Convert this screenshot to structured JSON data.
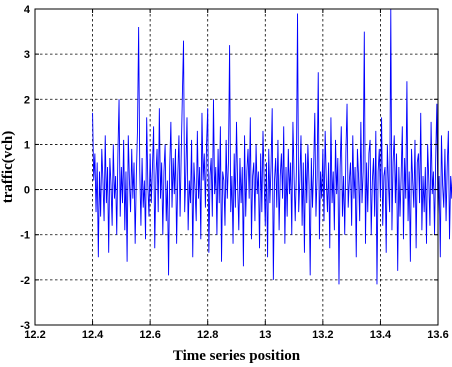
{
  "chart_data": {
    "type": "line",
    "title": "",
    "xlabel": "Time series position",
    "ylabel": "traffic(vch)",
    "xlim": [
      12.2,
      13.6
    ],
    "ylim": [
      -3,
      4
    ],
    "xticks": [
      12.2,
      12.4,
      12.6,
      12.8,
      13,
      13.2,
      13.4,
      13.6
    ],
    "yticks": [
      -3,
      -2,
      -1,
      0,
      1,
      2,
      3,
      4
    ],
    "xtick_labels": [
      "12.2",
      "12.4",
      "12.6",
      "12.8",
      "13",
      "13.2",
      "13.4",
      "13.6"
    ],
    "ytick_labels": [
      "-3",
      "-2",
      "-1",
      "0",
      "1",
      "2",
      "3",
      "4"
    ],
    "grid": true,
    "legend": "none",
    "series": [
      {
        "color": "#0000ff",
        "x_start": 12.4,
        "x_step": 0.004,
        "values": [
          1.7,
          0.2,
          0.8,
          -0.5,
          0.6,
          -1.5,
          0.4,
          -0.6,
          0.9,
          0.2,
          -0.7,
          1.2,
          -0.3,
          0.5,
          -1.4,
          0.7,
          0.1,
          -0.8,
          1.0,
          -0.2,
          0.3,
          -1.0,
          0.8,
          2.0,
          -0.6,
          0.5,
          -0.3,
          1.1,
          -0.9,
          0.4,
          -1.6,
          1.2,
          0.2,
          -0.5,
          0.9,
          -0.2,
          0.6,
          -1.2,
          0.3,
          1.3,
          3.6,
          0.4,
          -0.8,
          0.7,
          -0.4,
          0.2,
          -1.1,
          1.6,
          0.1,
          -0.6,
          0.8,
          -0.3,
          0.5,
          1.4,
          -1.3,
          0.3,
          0.9,
          -0.5,
          1.8,
          -0.2,
          0.6,
          -1.0,
          0.4,
          1.0,
          -0.7,
          0.2,
          -1.9,
          0.5,
          1.5,
          -0.4,
          0.7,
          -0.1,
          0.9,
          -1.2,
          0.3,
          1.2,
          -0.6,
          0.8,
          2.1,
          3.3,
          -0.5,
          0.4,
          1.6,
          -0.9,
          0.2,
          -0.3,
          1.1,
          -1.5,
          0.6,
          0.0,
          -0.7,
          1.3,
          -0.2,
          0.5,
          -1.1,
          1.7,
          0.2,
          0.8,
          -0.4,
          1.0,
          1.8,
          -1.4,
          0.3,
          0.7,
          -0.6,
          2.0,
          -0.1,
          0.5,
          -1.0,
          0.9,
          -0.3,
          1.4,
          -1.6,
          0.4,
          0.2,
          -0.8,
          1.1,
          -0.2,
          0.6,
          3.2,
          -0.5,
          0.3,
          -1.2,
          0.8,
          -0.4,
          1.5,
          0.1,
          -0.9,
          0.7,
          -0.3,
          0.5,
          -1.7,
          1.2,
          -0.6,
          0.4,
          0.9,
          -0.2,
          1.6,
          -1.1,
          0.3,
          0.6,
          -0.7,
          1.0,
          -0.1,
          0.4,
          -1.3,
          0.8,
          -0.5,
          1.3,
          0.2,
          -0.8,
          0.6,
          -1.5,
          0.9,
          -0.3,
          0.5,
          1.8,
          -2.0,
          0.2,
          0.7,
          -0.4,
          1.1,
          -0.9,
          0.3,
          0.8,
          -0.2,
          1.4,
          -1.2,
          0.5,
          -0.6,
          0.9,
          -0.1,
          0.6,
          -1.0,
          1.5,
          0.3,
          -0.7,
          0.4,
          3.9,
          -0.5,
          0.2,
          1.2,
          -0.8,
          0.6,
          -1.4,
          0.8,
          -0.3,
          1.0,
          0.1,
          -1.9,
          0.7,
          -0.4,
          0.5,
          1.7,
          -0.6,
          0.3,
          2.6,
          -1.1,
          0.4,
          -0.2,
          0.9,
          -0.7,
          1.3,
          0.2,
          -0.5,
          0.6,
          -1.3,
          1.6,
          -0.3,
          0.4,
          -0.9,
          1.1,
          -0.1,
          0.7,
          -2.1,
          0.5,
          1.4,
          -0.6,
          0.3,
          -1.0,
          0.8,
          1.9,
          -0.4,
          0.2,
          0.6,
          -0.8,
          1.2,
          -0.2,
          0.5,
          -1.5,
          0.9,
          0.3,
          -0.7,
          1.5,
          -0.3,
          0.4,
          3.5,
          -1.2,
          0.6,
          -0.5,
          0.8,
          1.1,
          -1.0,
          0.2,
          0.7,
          -0.6,
          1.3,
          -2.1,
          0.4,
          0.9,
          -0.2,
          1.6,
          -0.8,
          0.3,
          0.5,
          -1.4,
          1.0,
          0.1,
          -0.5,
          4.0,
          -0.9,
          0.6,
          1.2,
          -0.3,
          0.8,
          -1.8,
          0.5,
          -0.6,
          0.3,
          1.4,
          -1.1,
          0.7,
          -0.2,
          2.4,
          -0.7,
          0.4,
          -1.6,
          0.9,
          0.2,
          -0.4,
          1.1,
          -1.3,
          0.6,
          0.8,
          -0.3,
          1.7,
          -0.9,
          0.3,
          -0.5,
          0.5,
          -1.2,
          1.0,
          0.2,
          -0.8,
          1.5,
          -0.1,
          0.4,
          -1.0,
          0.7,
          1.9,
          -0.6,
          0.3,
          -1.5,
          1.2,
          0.1,
          -0.4,
          0.9,
          -0.7,
          0.5,
          1.3,
          -1.1,
          0.3,
          -0.2,
          0.8,
          -0.6,
          1.6,
          0.4,
          -1.4,
          0.6,
          2.6,
          -0.5,
          0.2
        ]
      }
    ]
  }
}
